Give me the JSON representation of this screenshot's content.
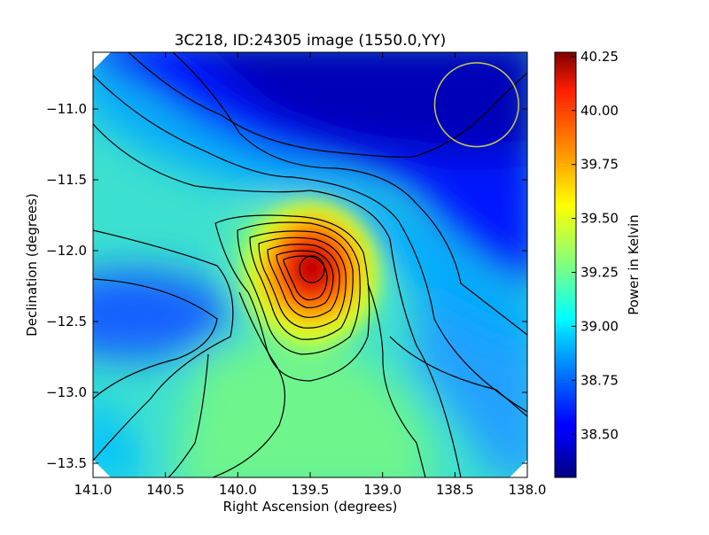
{
  "chart_data": {
    "type": "heatmap",
    "title": "3C218, ID:24305 image (1550.0,YY)",
    "xlabel": "Right Ascension (degrees)",
    "ylabel": "Declination (degrees)",
    "colorbar_label": "Power in Kelvin",
    "xlim": [
      141.0,
      138.0
    ],
    "ylim": [
      -13.6,
      -10.6
    ],
    "x_ticks": [
      141.0,
      140.5,
      140.0,
      139.5,
      139.0,
      138.5,
      138.0
    ],
    "x_tick_labels": [
      "141.0",
      "140.5",
      "140.0",
      "139.5",
      "139.0",
      "138.5",
      "138.0"
    ],
    "y_ticks": [
      -11.0,
      -11.5,
      -12.0,
      -12.5,
      -13.0,
      -13.5
    ],
    "y_tick_labels": [
      "−11.0",
      "−11.5",
      "−12.0",
      "−12.5",
      "−13.0",
      "−13.5"
    ],
    "colorbar_range": [
      38.3,
      40.27
    ],
    "colorbar_ticks": [
      38.5,
      38.75,
      39.0,
      39.25,
      39.5,
      39.75,
      40.0,
      40.25
    ],
    "colorbar_tick_labels": [
      "38.50",
      "38.75",
      "39.00",
      "39.25",
      "39.50",
      "39.75",
      "40.00",
      "40.25"
    ],
    "colormap": "jet",
    "peak": {
      "ra": 139.49,
      "dec": -12.13,
      "value": 40.25
    },
    "min_region": {
      "ra": 139.0,
      "dec": -10.8,
      "value": 38.3
    },
    "beam_circle": {
      "ra_center": 138.35,
      "dec_center": -10.97,
      "radius_deg": 0.29,
      "color": "#c8c850"
    },
    "contour_color": "#000000",
    "grid": false
  }
}
